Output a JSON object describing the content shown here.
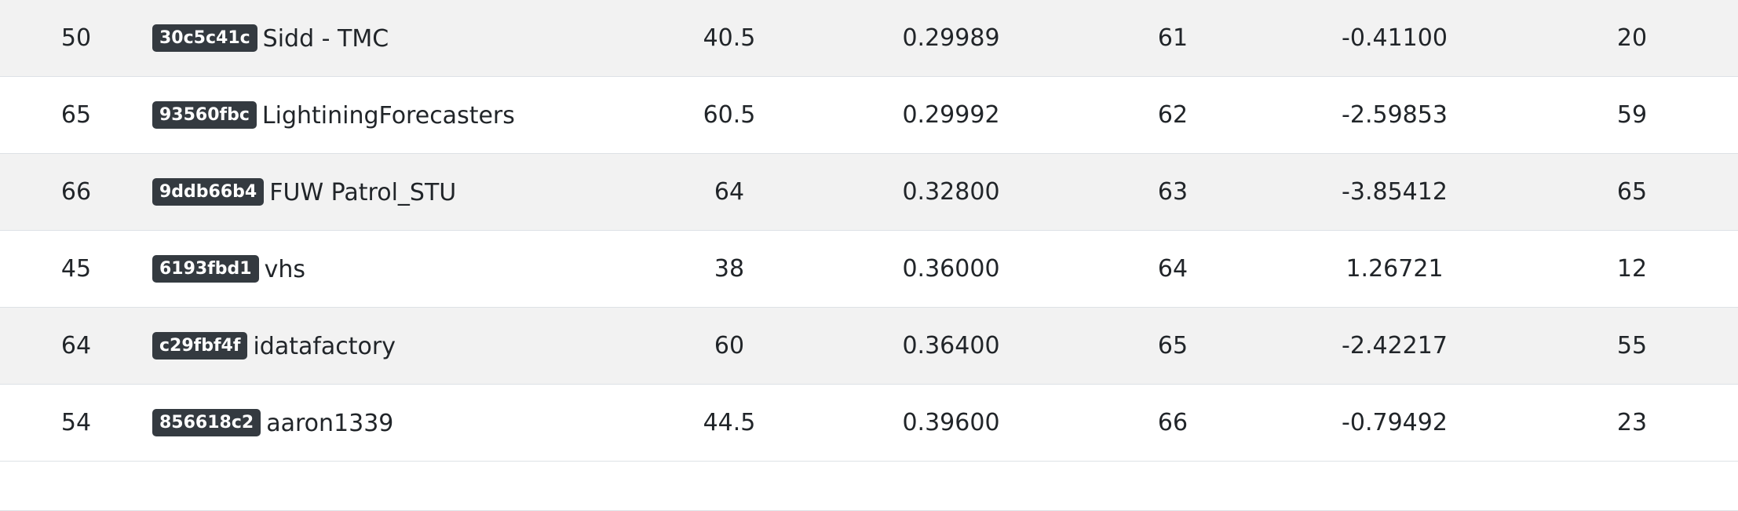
{
  "leaderboard": {
    "rows": [
      {
        "rank": "50",
        "hash": "30c5c41c",
        "team": "Sidd - TMC",
        "score": "40.5",
        "metric": "0.29989",
        "position": "61",
        "delta": "-0.41100",
        "prev": "20"
      },
      {
        "rank": "65",
        "hash": "93560fbc",
        "team": "LightiningForecasters",
        "score": "60.5",
        "metric": "0.29992",
        "position": "62",
        "delta": "-2.59853",
        "prev": "59"
      },
      {
        "rank": "66",
        "hash": "9ddb66b4",
        "team": "FUW Patrol_STU",
        "score": "64",
        "metric": "0.32800",
        "position": "63",
        "delta": "-3.85412",
        "prev": "65"
      },
      {
        "rank": "45",
        "hash": "6193fbd1",
        "team": "vhs",
        "score": "38",
        "metric": "0.36000",
        "position": "64",
        "delta": "1.26721",
        "prev": "12"
      },
      {
        "rank": "64",
        "hash": "c29fbf4f",
        "team": "idatafactory",
        "score": "60",
        "metric": "0.36400",
        "position": "65",
        "delta": "-2.42217",
        "prev": "55"
      },
      {
        "rank": "54",
        "hash": "856618c2",
        "team": "aaron1339",
        "score": "44.5",
        "metric": "0.39600",
        "position": "66",
        "delta": "-0.79492",
        "prev": "23"
      }
    ]
  },
  "colors": {
    "stripe": "#f2f2f2",
    "badge": "#343a40",
    "border": "#dee2e6"
  }
}
